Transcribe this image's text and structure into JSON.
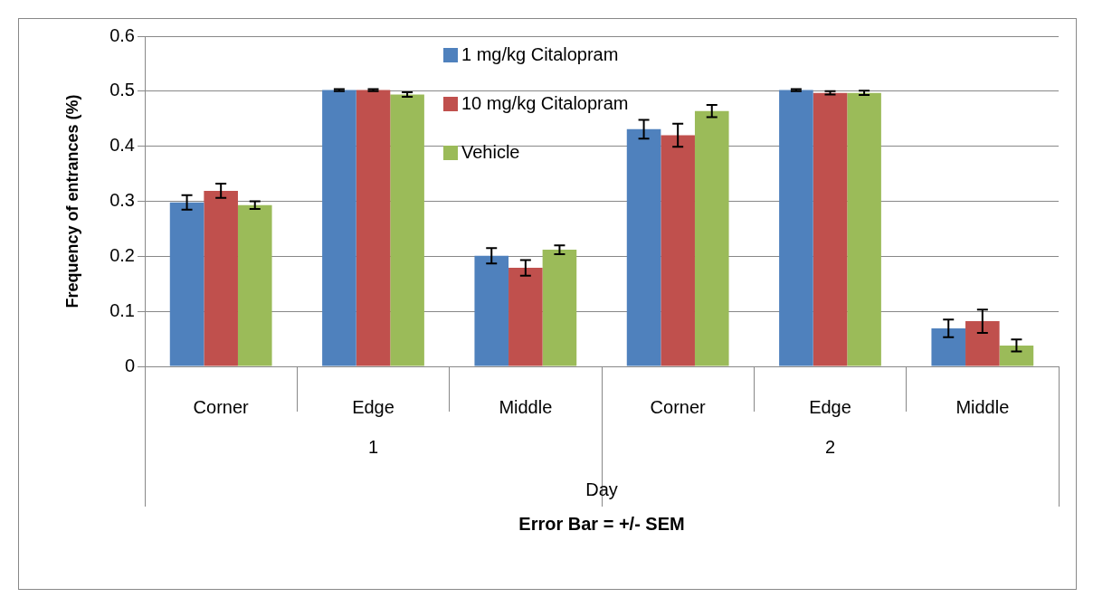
{
  "chart_data": {
    "type": "bar",
    "xlabel": "Day",
    "ylabel": "Frequency of entrances (%)",
    "categories": [
      "Corner",
      "Edge",
      "Middle",
      "Corner",
      "Edge",
      "Middle"
    ],
    "series": [
      {
        "name": "1 mg/kg Citalopram",
        "color": "#4f81bd",
        "values": [
          0.298,
          0.502,
          0.201,
          0.431,
          0.502,
          0.069
        ],
        "errors": [
          0.013,
          0.002,
          0.014,
          0.017,
          0.002,
          0.016
        ]
      },
      {
        "name": "10 mg/kg Citalopram",
        "color": "#c0504d",
        "values": [
          0.319,
          0.502,
          0.179,
          0.42,
          0.497,
          0.082
        ],
        "errors": [
          0.013,
          0.002,
          0.014,
          0.021,
          0.003,
          0.021
        ]
      },
      {
        "name": "Vehicle",
        "color": "#9bbb59",
        "values": [
          0.293,
          0.494,
          0.212,
          0.464,
          0.497,
          0.038
        ],
        "errors": [
          0.007,
          0.004,
          0.008,
          0.011,
          0.004,
          0.011
        ]
      }
    ],
    "ylim": [
      0,
      0.6
    ],
    "yticks": [
      0,
      0.1,
      0.2,
      0.3,
      0.4,
      0.5,
      0.6
    ],
    "grid": "y",
    "legend": "top",
    "annotations": [
      "1",
      "2",
      "Error Bar = +/- SEM"
    ]
  }
}
